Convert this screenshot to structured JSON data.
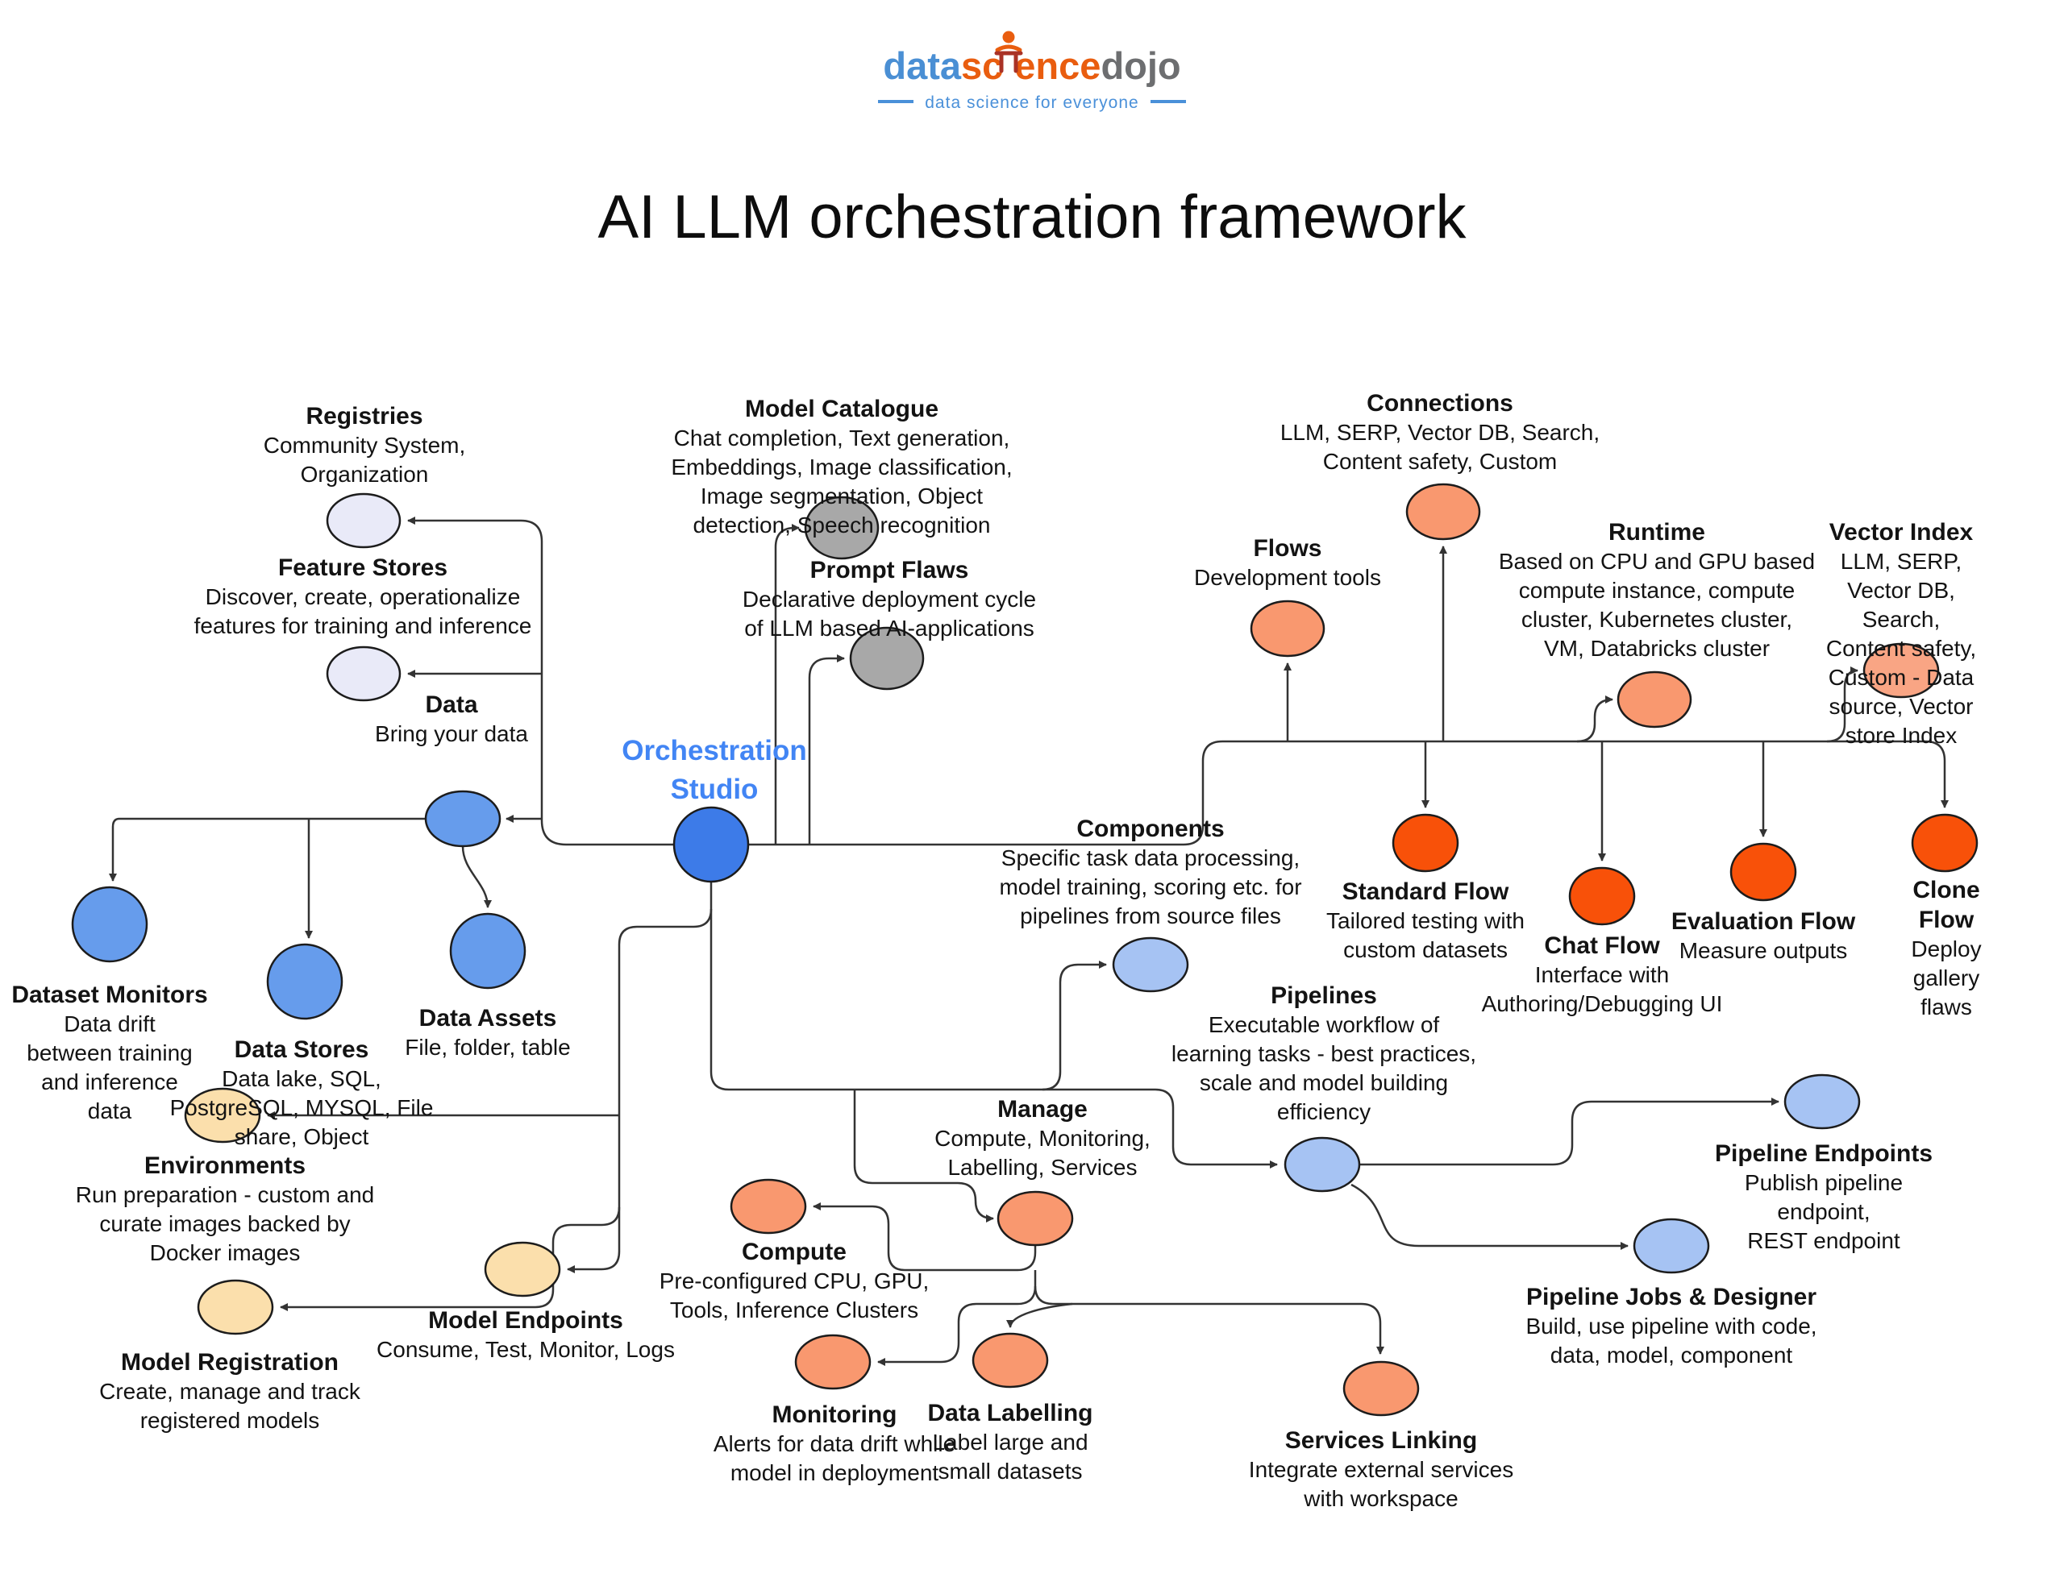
{
  "header": {
    "logo": {
      "word_part_blue": "data",
      "word_part_orange_left": "sc",
      "word_part_orange_right": "ence",
      "word_part_gray": "dojo",
      "tagline": "data science for everyone",
      "icon": "torii-sensei-icon",
      "colors": {
        "blue": "#4a8fd4",
        "orange": "#e95d0f",
        "gray": "#6d6e70",
        "tagline_blue": "#4a90d9"
      }
    },
    "title": "AI LLM orchestration framework"
  },
  "diagram": {
    "accent_colors": {
      "lavender": "#E9EAF8",
      "medium_blue": "#669CEC",
      "dark_blue": "#3D7BE8",
      "gray": "#A8A8A8",
      "salmon": "#F9986F",
      "light_salmon": "#F9A584",
      "orange_red": "#F85109",
      "light_blue": "#A6C3F3",
      "tan": "#FBDFAC",
      "line": "#333333"
    },
    "nodes": [
      {
        "id": "orchestration",
        "label": "Orchestration\nStudio",
        "description": "",
        "color": "#3D7BE8"
      },
      {
        "id": "registries",
        "label": "Registries",
        "description": "Community System,\nOrganization",
        "color": "#E9EAF8"
      },
      {
        "id": "feature_stores",
        "label": "Feature Stores",
        "description": "Discover, create, operationalize\nfeatures for training and inference",
        "color": "#E9EAF8"
      },
      {
        "id": "data",
        "label": "Data",
        "description": "Bring your data",
        "color": "#669CEC"
      },
      {
        "id": "dataset_monitors",
        "label": "Dataset Monitors",
        "description": "Data drift\nbetween training\nand inference\ndata",
        "color": "#669CEC"
      },
      {
        "id": "data_stores",
        "label": "Data Stores",
        "description": "Data lake, SQL,\nPostgreSQL, MYSQL, File\nshare, Object",
        "color": "#669CEC"
      },
      {
        "id": "data_assets",
        "label": "Data Assets",
        "description": "File, folder, table",
        "color": "#669CEC"
      },
      {
        "id": "model_catalogue",
        "label": "Model Catalogue",
        "description": "Chat completion, Text generation,\nEmbeddings, Image classification,\nImage segmentation, Object\ndetection, Speech recognition",
        "color": "#A8A8A8"
      },
      {
        "id": "prompt_flaws",
        "label": "Prompt Flaws",
        "description": "Declarative deployment cycle\nof LLM based AI-applications",
        "color": "#A8A8A8"
      },
      {
        "id": "flows",
        "label": "Flows",
        "description": "Development tools",
        "color": "#F9986F"
      },
      {
        "id": "connections",
        "label": "Connections",
        "description": "LLM, SERP, Vector DB, Search,\nContent safety, Custom",
        "color": "#F9986F"
      },
      {
        "id": "runtime",
        "label": "Runtime",
        "description": "Based on CPU and GPU based\ncompute instance, compute\ncluster, Kubernetes cluster,\nVM, Databricks cluster",
        "color": "#F9986F"
      },
      {
        "id": "vector_index",
        "label": "Vector Index",
        "description": "LLM, SERP, Vector DB, Search,\nContent safety, Custom - Data\nsource, Vector store Index",
        "color": "#F9A584"
      },
      {
        "id": "standard_flow",
        "label": "Standard Flow",
        "description": "Tailored testing with\ncustom datasets",
        "color": "#F85109"
      },
      {
        "id": "chat_flow",
        "label": "Chat Flow",
        "description": "Interface with\nAuthoring/Debugging UI",
        "color": "#F85109"
      },
      {
        "id": "evaluation_flow",
        "label": "Evaluation Flow",
        "description": "Measure outputs",
        "color": "#F85109"
      },
      {
        "id": "clone_flow",
        "label": "Clone Flow",
        "description": "Deploy gallery flaws",
        "color": "#F85109"
      },
      {
        "id": "components",
        "label": "Components",
        "description": "Specific task data processing,\nmodel training, scoring etc. for\npipelines from source files",
        "color": "#A6C3F3"
      },
      {
        "id": "pipelines",
        "label": "Pipelines",
        "description": "Executable workflow of\nlearning tasks - best practices,\nscale and model building\nefficiency",
        "color": "#A6C3F3"
      },
      {
        "id": "manage",
        "label": "Manage",
        "description": "Compute, Monitoring,\nLabelling, Services",
        "color": "#F9986F"
      },
      {
        "id": "compute",
        "label": "Compute",
        "description": "Pre-configured CPU, GPU,\nTools, Inference Clusters",
        "color": "#F9986F"
      },
      {
        "id": "monitoring",
        "label": "Monitoring",
        "description": "Alerts for data drift while\nmodel in deployment",
        "color": "#F9986F"
      },
      {
        "id": "data_labelling",
        "label": "Data Labelling",
        "description": "Label large and\nsmall datasets",
        "color": "#F9986F"
      },
      {
        "id": "services_linking",
        "label": "Services Linking",
        "description": "Integrate external services\nwith workspace",
        "color": "#F9986F"
      },
      {
        "id": "pipeline_jobs",
        "label": "Pipeline Jobs & Designer",
        "description": "Build, use pipeline with code,\ndata, model, component",
        "color": "#A6C3F3"
      },
      {
        "id": "pipeline_endpoints",
        "label": "Pipeline Endpoints",
        "description": "Publish pipeline endpoint,\nREST endpoint",
        "color": "#A6C3F3"
      },
      {
        "id": "environments",
        "label": "Environments",
        "description": "Run preparation - custom and\ncurate images backed by\nDocker images",
        "color": "#FBDFAC"
      },
      {
        "id": "model_registration",
        "label": "Model Registration",
        "description": "Create, manage and track\nregistered models",
        "color": "#FBDFAC"
      },
      {
        "id": "model_endpoints",
        "label": "Model Endpoints",
        "description": "Consume, Test, Monitor, Logs",
        "color": "#FBDFAC"
      }
    ],
    "edges": [
      {
        "from": "orchestration",
        "to": "registries"
      },
      {
        "from": "orchestration",
        "to": "feature_stores"
      },
      {
        "from": "orchestration",
        "to": "data"
      },
      {
        "from": "data",
        "to": "dataset_monitors"
      },
      {
        "from": "data",
        "to": "data_stores"
      },
      {
        "from": "data",
        "to": "data_assets"
      },
      {
        "from": "orchestration",
        "to": "model_catalogue"
      },
      {
        "from": "orchestration",
        "to": "prompt_flaws"
      },
      {
        "from": "orchestration",
        "to": "clone_flow"
      },
      {
        "from": "orchestration",
        "to": "flows"
      },
      {
        "from": "orchestration",
        "to": "connections"
      },
      {
        "from": "orchestration",
        "to": "runtime"
      },
      {
        "from": "orchestration",
        "to": "vector_index"
      },
      {
        "from": "orchestration",
        "to": "standard_flow"
      },
      {
        "from": "orchestration",
        "to": "chat_flow"
      },
      {
        "from": "orchestration",
        "to": "evaluation_flow"
      },
      {
        "from": "orchestration",
        "to": "pipelines"
      },
      {
        "from": "orchestration",
        "to": "components"
      },
      {
        "from": "orchestration",
        "to": "manage"
      },
      {
        "from": "manage",
        "to": "compute"
      },
      {
        "from": "manage",
        "to": "monitoring"
      },
      {
        "from": "manage",
        "to": "services_linking"
      },
      {
        "from": "manage",
        "to": "data_labelling"
      },
      {
        "from": "pipelines",
        "to": "pipeline_endpoints"
      },
      {
        "from": "pipelines",
        "to": "pipeline_jobs"
      },
      {
        "from": "orchestration",
        "to": "model_endpoints"
      },
      {
        "from": "orchestration",
        "to": "environments"
      },
      {
        "from": "orchestration",
        "to": "model_registration"
      }
    ]
  }
}
